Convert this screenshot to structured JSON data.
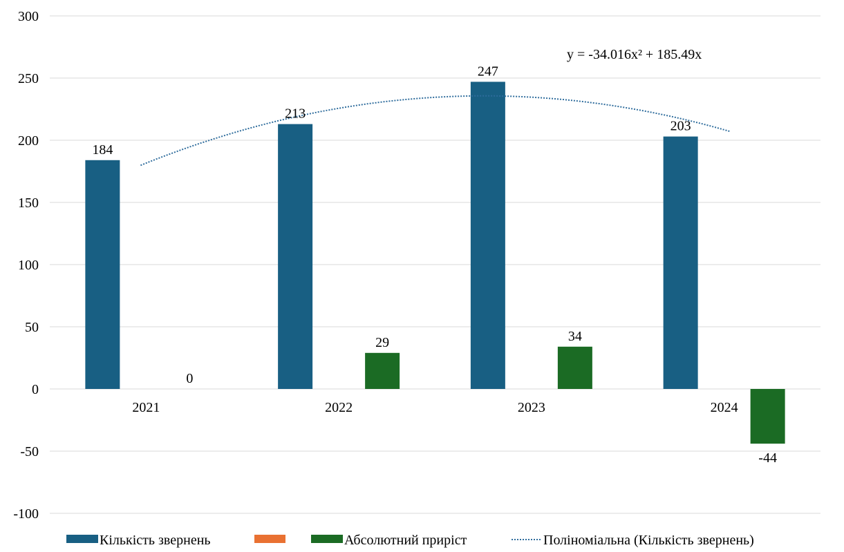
{
  "chart_data": {
    "type": "bar",
    "categories": [
      "2021",
      "2022",
      "2023",
      "2024"
    ],
    "ylim": [
      -100,
      300
    ],
    "yticks": [
      -100,
      -50,
      0,
      50,
      100,
      150,
      200,
      250,
      300
    ],
    "grid": true,
    "legend_position": "bottom",
    "series": [
      {
        "name": "Кількість звернень",
        "color": "#185F83",
        "values": [
          184,
          213,
          247,
          203
        ]
      },
      {
        "name": "",
        "color": "#E97132",
        "values": [
          null,
          null,
          null,
          null
        ]
      },
      {
        "name": "Абсолютний приріст",
        "color": "#1B6B24",
        "values": [
          0,
          29,
          34,
          -44
        ]
      }
    ],
    "trendline": {
      "name": "Поліноміальна (Кількість звернень)",
      "type": "polynomial",
      "order": 2,
      "of_series": "Кількість звернень",
      "equation": "y = -34.016x² + 185.49x",
      "color": "#2E6C9C"
    }
  }
}
